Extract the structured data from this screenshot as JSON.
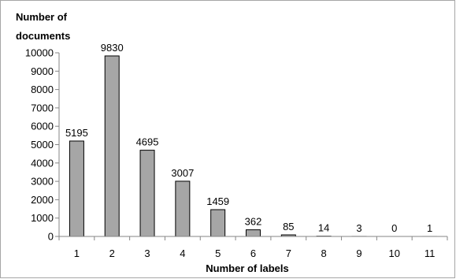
{
  "chart_data": {
    "type": "bar",
    "ylabel_lines": [
      "Number of",
      "documents"
    ],
    "xlabel": "Number of labels",
    "categories": [
      "1",
      "2",
      "3",
      "4",
      "5",
      "6",
      "7",
      "8",
      "9",
      "10",
      "11"
    ],
    "values": [
      5195,
      9830,
      4695,
      3007,
      1459,
      362,
      85,
      14,
      3,
      0,
      1
    ],
    "data_labels": [
      "5195",
      "9830",
      "4695",
      "3007",
      "1459",
      "362",
      "85",
      "14",
      "3",
      "0",
      "1"
    ],
    "ylim": [
      0,
      10000
    ],
    "yticks": [
      0,
      1000,
      2000,
      3000,
      4000,
      5000,
      6000,
      7000,
      8000,
      9000,
      10000
    ],
    "grid": false,
    "legend": "none",
    "bar_color": "#a6a6a6",
    "bar_border_color": "#000000"
  }
}
